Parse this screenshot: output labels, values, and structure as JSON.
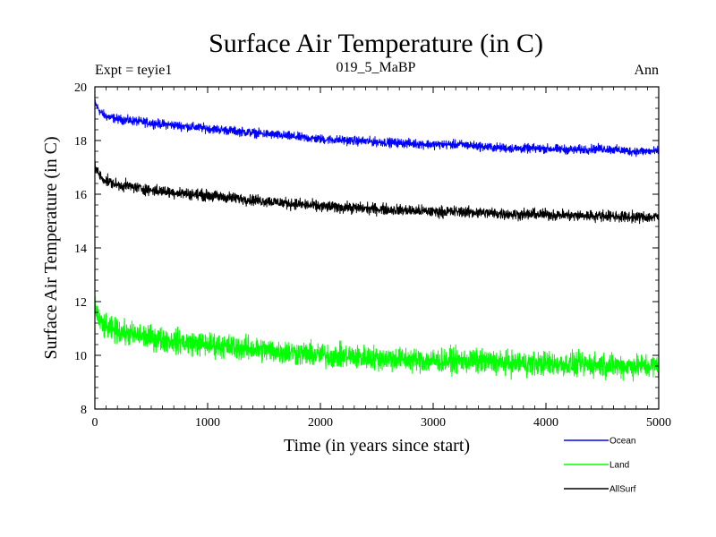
{
  "chart_data": {
    "type": "line",
    "title": "Surface Air Temperature (in C)",
    "subtitle_left": "Expt = teyie1",
    "subtitle_center": "019_5_MaBP",
    "subtitle_right": "Ann",
    "xlabel": "Time (in years since start)",
    "ylabel": "Surface Air Temperature (in C)",
    "xlim": [
      0,
      5000
    ],
    "ylim": [
      8,
      20
    ],
    "xticks": [
      0,
      1000,
      2000,
      3000,
      4000,
      5000
    ],
    "yticks": [
      8,
      10,
      12,
      14,
      16,
      18,
      20
    ],
    "series": [
      {
        "name": "Ocean",
        "color": "#0000ff",
        "x": [
          0,
          50,
          100,
          200,
          300,
          500,
          750,
          1000,
          1250,
          1500,
          1750,
          2000,
          2250,
          2500,
          2750,
          3000,
          3250,
          3500,
          3750,
          4000,
          4250,
          4500,
          4750,
          5000
        ],
        "values": [
          19.4,
          19.05,
          18.9,
          18.8,
          18.75,
          18.65,
          18.55,
          18.45,
          18.35,
          18.25,
          18.15,
          18.05,
          18.0,
          17.95,
          17.9,
          17.85,
          17.85,
          17.75,
          17.7,
          17.7,
          17.65,
          17.7,
          17.6,
          17.6
        ],
        "noise": 0.08
      },
      {
        "name": "Land",
        "color": "#00ff00",
        "x": [
          0,
          50,
          100,
          200,
          300,
          500,
          750,
          1000,
          1250,
          1500,
          1750,
          2000,
          2250,
          2500,
          2750,
          3000,
          3250,
          3500,
          3750,
          4000,
          4250,
          4500,
          4750,
          5000
        ],
        "values": [
          11.8,
          11.2,
          11.0,
          10.9,
          10.8,
          10.65,
          10.5,
          10.4,
          10.3,
          10.2,
          10.1,
          10.0,
          9.95,
          9.9,
          9.85,
          9.8,
          9.8,
          9.75,
          9.7,
          9.7,
          9.65,
          9.65,
          9.6,
          9.6
        ],
        "noise": 0.22
      },
      {
        "name": "AllSurf",
        "color": "#000000",
        "x": [
          0,
          50,
          100,
          200,
          300,
          500,
          750,
          1000,
          1250,
          1500,
          1750,
          2000,
          2250,
          2500,
          2750,
          3000,
          3250,
          3500,
          3750,
          4000,
          4250,
          4500,
          4750,
          5000
        ],
        "values": [
          17.05,
          16.65,
          16.5,
          16.35,
          16.3,
          16.15,
          16.05,
          15.95,
          15.85,
          15.75,
          15.65,
          15.55,
          15.5,
          15.45,
          15.4,
          15.35,
          15.35,
          15.3,
          15.25,
          15.25,
          15.2,
          15.2,
          15.15,
          15.15
        ],
        "noise": 0.1
      }
    ]
  }
}
